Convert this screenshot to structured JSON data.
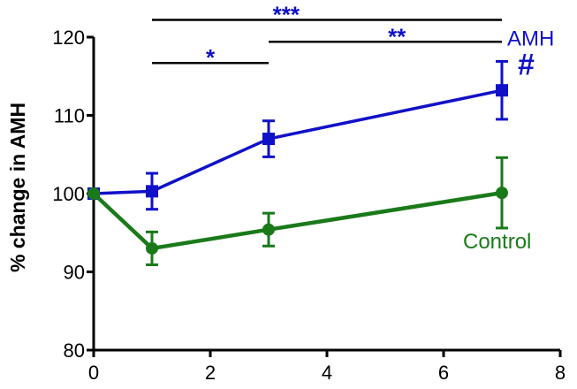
{
  "chart_data": {
    "type": "line",
    "xlabel": "",
    "ylabel": "% change in AMH",
    "xlim": [
      0,
      8
    ],
    "ylim": [
      80,
      120
    ],
    "xticks": [
      0,
      2,
      4,
      6,
      8
    ],
    "yticks": [
      80,
      90,
      100,
      110,
      120
    ],
    "x_tick_labels": [
      "0",
      "2",
      "4",
      "6",
      "8"
    ],
    "y_tick_labels": [
      "80",
      "90",
      "100",
      "110",
      "120"
    ],
    "grid": false,
    "legend": "none",
    "series": [
      {
        "name": "AMH",
        "color": "#1010c8",
        "marker": "square",
        "x": [
          0,
          1,
          3,
          7
        ],
        "y": [
          100,
          100.3,
          107,
          113.2
        ],
        "error": [
          0,
          2.3,
          2.3,
          3.7
        ]
      },
      {
        "name": "Control",
        "color": "#1a7a1a",
        "marker": "circle",
        "x": [
          0,
          1,
          3,
          7
        ],
        "y": [
          100,
          93,
          95.4,
          100.1
        ],
        "error": [
          0,
          2.1,
          2.1,
          4.5
        ]
      }
    ],
    "annotations": {
      "hash": {
        "text": "#",
        "color": "#1010c8",
        "series": "AMH"
      },
      "significance": [
        {
          "x1": 1,
          "x2": 7,
          "y": 122.2,
          "stars": "***",
          "star_x": 3.3,
          "star_color": "#1010c8"
        },
        {
          "x1": 1,
          "x2": 3,
          "y": 116.7,
          "stars": "*",
          "star_x": 2.0,
          "star_color": "#1010c8"
        },
        {
          "x1": 3,
          "x2": 7,
          "y": 119.4,
          "stars": "**",
          "star_x": 5.2,
          "star_color": "#1010c8"
        }
      ]
    }
  }
}
